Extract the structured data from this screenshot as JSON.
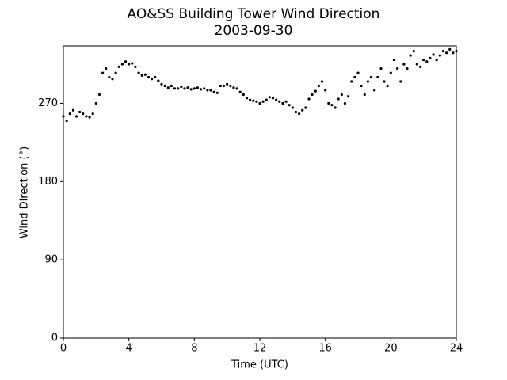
{
  "chart_data": {
    "type": "scatter",
    "title": "AO&SS Building Tower Wind Direction",
    "subtitle": "2003-09-30",
    "x_label": "Time (UTC)",
    "y_label": "Wind Direction (°)",
    "color": "#000000",
    "xlim": [
      0,
      24
    ],
    "xticks": [
      0,
      4,
      8,
      12,
      16,
      20,
      24
    ],
    "ylim": [
      0,
      336
    ],
    "yticks": [
      0,
      90,
      180,
      270
    ],
    "x": [
      0,
      0.2,
      0.4,
      0.6,
      0.8,
      1,
      1.2,
      1.4,
      1.6,
      1.8,
      2,
      2.2,
      2.4,
      2.6,
      2.8,
      3,
      3.2,
      3.4,
      3.6,
      3.8,
      4,
      4.2,
      4.4,
      4.6,
      4.8,
      5,
      5.2,
      5.4,
      5.6,
      5.8,
      6,
      6.2,
      6.4,
      6.6,
      6.8,
      7,
      7.2,
      7.4,
      7.6,
      7.8,
      8,
      8.2,
      8.4,
      8.6,
      8.8,
      9,
      9.2,
      9.4,
      9.6,
      9.8,
      10,
      10.2,
      10.4,
      10.6,
      10.8,
      11,
      11.2,
      11.4,
      11.6,
      11.8,
      12,
      12.2,
      12.4,
      12.6,
      12.8,
      13,
      13.2,
      13.4,
      13.6,
      13.8,
      14,
      14.2,
      14.4,
      14.6,
      14.8,
      15,
      15.2,
      15.4,
      15.6,
      15.8,
      16,
      16.2,
      16.4,
      16.6,
      16.8,
      17,
      17.2,
      17.4,
      17.6,
      17.8,
      18,
      18.2,
      18.4,
      18.6,
      18.8,
      19,
      19.2,
      19.4,
      19.6,
      19.8,
      20,
      20.2,
      20.4,
      20.6,
      20.8,
      21,
      21.2,
      21.4,
      21.6,
      21.8,
      22,
      22.2,
      22.4,
      22.6,
      22.8,
      23,
      23.2,
      23.4,
      23.6,
      23.8,
      24
    ],
    "values": [
      255,
      250,
      258,
      262,
      255,
      260,
      258,
      255,
      254,
      258,
      270,
      280,
      305,
      310,
      300,
      298,
      305,
      312,
      315,
      318,
      315,
      316,
      312,
      305,
      302,
      303,
      300,
      298,
      300,
      296,
      292,
      290,
      288,
      290,
      287,
      287,
      289,
      287,
      288,
      286,
      287,
      288,
      286,
      287,
      285,
      285,
      283,
      282,
      290,
      290,
      292,
      290,
      288,
      287,
      283,
      280,
      276,
      274,
      273,
      272,
      270,
      272,
      274,
      277,
      276,
      274,
      272,
      270,
      272,
      268,
      265,
      260,
      258,
      262,
      265,
      275,
      280,
      284,
      290,
      295,
      285,
      270,
      268,
      265,
      275,
      280,
      270,
      278,
      295,
      300,
      305,
      290,
      280,
      295,
      300,
      285,
      300,
      310,
      295,
      290,
      305,
      320,
      310,
      295,
      315,
      310,
      325,
      330,
      315,
      312,
      320,
      318,
      322,
      326,
      320,
      325,
      330,
      328,
      332,
      328,
      330
    ]
  }
}
